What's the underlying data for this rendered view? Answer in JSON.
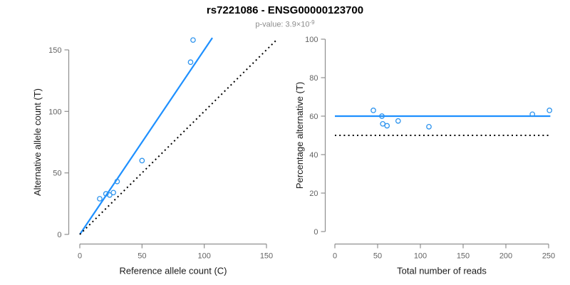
{
  "header": {
    "title": "rs7221086 - ENSG00000123700",
    "subtitle_text": "p-value: 3.9×10",
    "subtitle_exponent": "-9"
  },
  "colors": {
    "accent_blue": "#1E90FF",
    "point_blue": "#2E94EE",
    "reference_black": "#000000",
    "axis_gray": "#8f8f8f",
    "tick_label_gray": "#636363",
    "axis_title_color": "#1a1a1a",
    "title_color": "#000000",
    "subtitle_gray": "#8c8c8c",
    "background": "#ffffff"
  },
  "chart_data": [
    {
      "type": "scatter",
      "panel": "left",
      "xlabel": "Reference allele count (C)",
      "ylabel": "Alternative allele count (T)",
      "xlim": [
        0,
        150
      ],
      "ylim": [
        0,
        150
      ],
      "xticks": [
        0,
        50,
        100,
        150
      ],
      "yticks": [
        0,
        50,
        100,
        150
      ],
      "grid": false,
      "legend": "none",
      "points": [
        [
          16,
          29
        ],
        [
          21,
          33
        ],
        [
          24,
          32
        ],
        [
          27,
          34
        ],
        [
          30,
          43
        ],
        [
          50,
          60
        ],
        [
          89,
          140
        ],
        [
          91,
          158
        ]
      ],
      "fit_line": {
        "slope": 1.5,
        "intercept": 0,
        "x_range": [
          0,
          106.5
        ],
        "style": "solid"
      },
      "reference_line": {
        "slope": 1,
        "intercept": 0,
        "x_range": [
          0,
          158
        ],
        "style": "dotted"
      }
    },
    {
      "type": "scatter",
      "panel": "right",
      "xlabel": "Total number of reads",
      "ylabel": "Percentage alternative (T)",
      "xlim": [
        0,
        250
      ],
      "ylim": [
        0,
        100
      ],
      "xticks": [
        0,
        50,
        100,
        150,
        200,
        250
      ],
      "yticks": [
        0,
        20,
        40,
        60,
        80,
        100
      ],
      "grid": false,
      "legend": "none",
      "points": [
        [
          45,
          63
        ],
        [
          55,
          60
        ],
        [
          56,
          56
        ],
        [
          61,
          55
        ],
        [
          74,
          57.5
        ],
        [
          110,
          54.5
        ],
        [
          231,
          61
        ],
        [
          251,
          63
        ]
      ],
      "fit_line": {
        "value": 60,
        "x_range": [
          0,
          252
        ],
        "style": "solid"
      },
      "reference_line": {
        "value": 50,
        "x_range": [
          0,
          252
        ],
        "style": "dotted"
      }
    }
  ]
}
